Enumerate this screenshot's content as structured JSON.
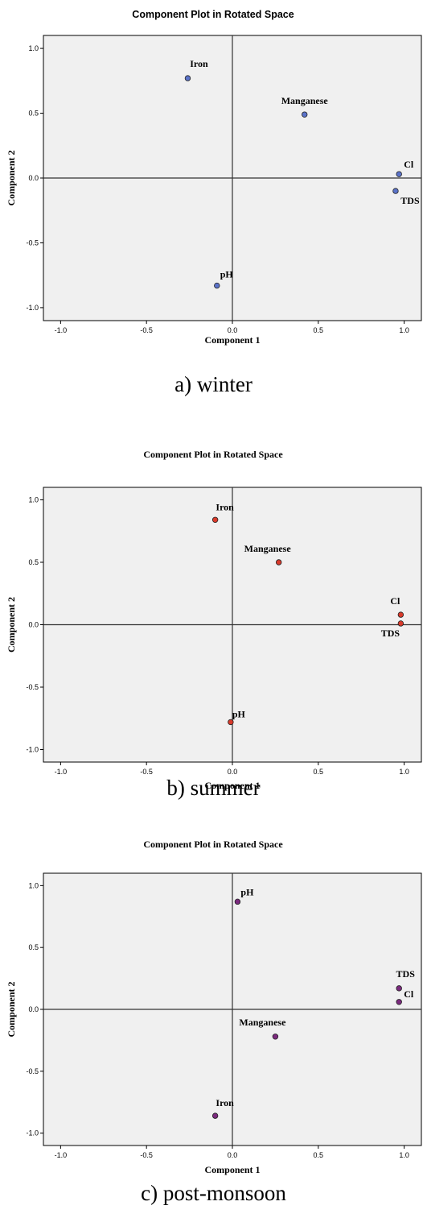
{
  "chart_data": [
    {
      "type": "scatter",
      "title": "Component Plot in Rotated Space",
      "xlabel": "Component 1",
      "ylabel": "Component 2",
      "xlim": [
        -1.1,
        1.1
      ],
      "ylim": [
        -1.1,
        1.1
      ],
      "xticks": [
        "-1.0",
        "-0.5",
        "0.0",
        "0.5",
        "1.0"
      ],
      "yticks": [
        "1.0",
        "0.5",
        "0.0",
        "-0.5",
        "-1.0"
      ],
      "grid": false,
      "marker_color": "#5b73c9",
      "caption": "a) winter",
      "points": [
        {
          "label": "Iron",
          "x": -0.26,
          "y": 0.77
        },
        {
          "label": "Manganese",
          "x": 0.42,
          "y": 0.49
        },
        {
          "label": "Cl",
          "x": 0.97,
          "y": 0.03
        },
        {
          "label": "TDS",
          "x": 0.95,
          "y": -0.1
        },
        {
          "label": "pH",
          "x": -0.09,
          "y": -0.83
        }
      ]
    },
    {
      "type": "scatter",
      "title": "Component Plot in Rotated Space",
      "xlabel": "Component 1",
      "ylabel": "Component 2",
      "xlim": [
        -1.1,
        1.1
      ],
      "ylim": [
        -1.1,
        1.1
      ],
      "xticks": [
        "-1.0",
        "-0.5",
        "0.0",
        "0.5",
        "1.0"
      ],
      "yticks": [
        "1.0",
        "0.5",
        "0.0",
        "-0.5",
        "-1.0"
      ],
      "grid": false,
      "marker_color": "#d93a2b",
      "caption": "b) summer",
      "points": [
        {
          "label": "Iron",
          "x": -0.1,
          "y": 0.84
        },
        {
          "label": "Manganese",
          "x": 0.27,
          "y": 0.5
        },
        {
          "label": "Cl",
          "x": 0.98,
          "y": 0.08
        },
        {
          "label": "TDS",
          "x": 0.98,
          "y": 0.01
        },
        {
          "label": "pH",
          "x": -0.01,
          "y": -0.78
        }
      ]
    },
    {
      "type": "scatter",
      "title": "Component Plot in Rotated Space",
      "xlabel": "Component 1",
      "ylabel": "Component 2",
      "xlim": [
        -1.1,
        1.1
      ],
      "ylim": [
        -1.1,
        1.1
      ],
      "xticks": [
        "-1.0",
        "-0.5",
        "0.0",
        "0.5",
        "1.0"
      ],
      "yticks": [
        "1.0",
        "0.5",
        "0.0",
        "-0.5",
        "-1.0"
      ],
      "grid": false,
      "marker_color": "#7b2a7e",
      "caption": "c) post-monsoon",
      "points": [
        {
          "label": "pH",
          "x": 0.03,
          "y": 0.87
        },
        {
          "label": "TDS",
          "x": 0.97,
          "y": 0.17
        },
        {
          "label": "Cl",
          "x": 0.97,
          "y": 0.06
        },
        {
          "label": "Manganese",
          "x": 0.25,
          "y": -0.22
        },
        {
          "label": "Iron",
          "x": -0.1,
          "y": -0.86
        }
      ]
    }
  ]
}
